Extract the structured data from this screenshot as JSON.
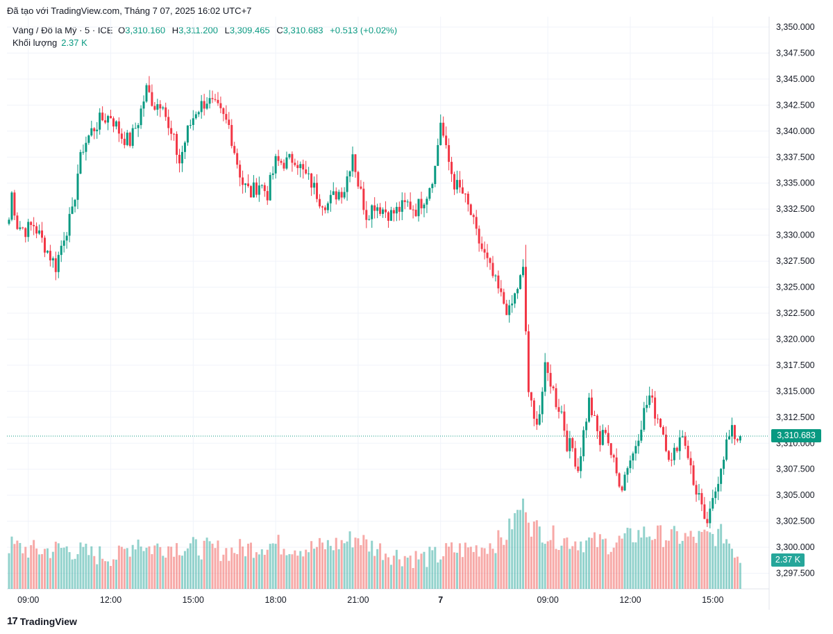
{
  "header": {
    "text": "Đã tạo với TradingView.com, Tháng 7 07, 2025 16:02 UTC+7"
  },
  "legend": {
    "symbol": "Vàng / Đô la Mỹ · 5 · ICE",
    "open_label": "O",
    "open": "3,310.160",
    "high_label": "H",
    "high": "3,311.200",
    "low_label": "L",
    "low": "3,309.465",
    "close_label": "C",
    "close": "3,310.683",
    "change": "+0.513 (+0.02%)",
    "volume_label": "Khối lượng",
    "volume": "2.37 K"
  },
  "last_price_tag": "3,310.683",
  "volume_tag": "2.37 K",
  "brand": {
    "logo": "17",
    "name": "TradingView"
  },
  "colors": {
    "up": "#089981",
    "down": "#f23645",
    "up_vol": "#26a69a",
    "down_vol": "#ef5350",
    "grid": "#f0f3fa",
    "text": "#131722"
  },
  "chart_data": {
    "type": "candlestick",
    "y_range": [
      3296.0,
      3351.0
    ],
    "y_ticks": [
      "3,350.000",
      "3,347.500",
      "3,345.000",
      "3,342.500",
      "3,340.000",
      "3,337.500",
      "3,335.000",
      "3,332.500",
      "3,330.000",
      "3,327.500",
      "3,325.000",
      "3,322.500",
      "3,320.000",
      "3,317.500",
      "3,315.000",
      "3,312.500",
      "3,310.000",
      "3,307.500",
      "3,305.000",
      "3,302.500",
      "3,300.000",
      "3,297.500"
    ],
    "y_tick_values": [
      3350,
      3347.5,
      3345,
      3342.5,
      3340,
      3337.5,
      3335,
      3332.5,
      3330,
      3327.5,
      3325,
      3322.5,
      3320,
      3317.5,
      3315,
      3312.5,
      3310,
      3307.5,
      3305,
      3302.5,
      3300,
      3297.5
    ],
    "x_ticks": [
      {
        "label": "09:00",
        "index": 7
      },
      {
        "label": "12:00",
        "index": 37
      },
      {
        "label": "15:00",
        "index": 67
      },
      {
        "label": "18:00",
        "index": 97
      },
      {
        "label": "21:00",
        "index": 127
      },
      {
        "label": "7",
        "index": 157
      },
      {
        "label": "09:00",
        "index": 196
      },
      {
        "label": "12:00",
        "index": 226
      },
      {
        "label": "15:00",
        "index": 256
      }
    ],
    "last_price": 3310.683,
    "anchors": [
      [
        0,
        3331.5
      ],
      [
        1,
        3334
      ],
      [
        3,
        3331
      ],
      [
        6,
        3330.5
      ],
      [
        9,
        3331
      ],
      [
        13,
        3329
      ],
      [
        17,
        3327
      ],
      [
        20,
        3330
      ],
      [
        23,
        3332
      ],
      [
        25,
        3336
      ],
      [
        27,
        3338.5
      ],
      [
        30,
        3340
      ],
      [
        33,
        3341
      ],
      [
        37,
        3341.5
      ],
      [
        41,
        3339.5
      ],
      [
        44,
        3339
      ],
      [
        47,
        3341
      ],
      [
        50,
        3344
      ],
      [
        53,
        3342.5
      ],
      [
        56,
        3343
      ],
      [
        58,
        3340
      ],
      [
        60,
        3339
      ],
      [
        62,
        3337
      ],
      [
        65,
        3340
      ],
      [
        68,
        3342
      ],
      [
        72,
        3343
      ],
      [
        76,
        3342
      ],
      [
        80,
        3340.5
      ],
      [
        83,
        3337
      ],
      [
        85,
        3335
      ],
      [
        88,
        3334
      ],
      [
        91,
        3335
      ],
      [
        94,
        3334
      ],
      [
        97,
        3337
      ],
      [
        101,
        3337
      ],
      [
        104,
        3337.5
      ],
      [
        107,
        3336
      ],
      [
        110,
        3335
      ],
      [
        113,
        3333.5
      ],
      [
        116,
        3333
      ],
      [
        119,
        3334
      ],
      [
        122,
        3334.5
      ],
      [
        125,
        3338
      ],
      [
        127,
        3335
      ],
      [
        130,
        3332
      ],
      [
        133,
        3333
      ],
      [
        136,
        3332.5
      ],
      [
        139,
        3332
      ],
      [
        142,
        3332.5
      ],
      [
        145,
        3333
      ],
      [
        148,
        3332.5
      ],
      [
        152,
        3334
      ],
      [
        155,
        3336.5
      ],
      [
        157,
        3341
      ],
      [
        159,
        3338
      ],
      [
        162,
        3335
      ],
      [
        165,
        3334
      ],
      [
        168,
        3332
      ],
      [
        170,
        3330
      ],
      [
        173,
        3328
      ],
      [
        176,
        3326
      ],
      [
        179,
        3324
      ],
      [
        182,
        3322.5
      ],
      [
        185,
        3325
      ],
      [
        187,
        3326.5
      ],
      [
        189,
        3315
      ],
      [
        191,
        3312
      ],
      [
        193,
        3313
      ],
      [
        195,
        3317
      ],
      [
        197,
        3316
      ],
      [
        199,
        3314
      ],
      [
        201,
        3313
      ],
      [
        203,
        3310
      ],
      [
        205,
        3309.5
      ],
      [
        207,
        3307.5
      ],
      [
        209,
        3311
      ],
      [
        211,
        3314
      ],
      [
        213,
        3312
      ],
      [
        215,
        3310
      ],
      [
        217,
        3311.5
      ],
      [
        219,
        3309
      ],
      [
        221,
        3307
      ],
      [
        223,
        3306
      ],
      [
        225,
        3308
      ],
      [
        227,
        3309
      ],
      [
        229,
        3311
      ],
      [
        231,
        3313
      ],
      [
        233,
        3314.5
      ],
      [
        235,
        3313
      ],
      [
        237,
        3312
      ],
      [
        239,
        3310
      ],
      [
        241,
        3308
      ],
      [
        243,
        3310
      ],
      [
        245,
        3311
      ],
      [
        247,
        3309
      ],
      [
        249,
        3306
      ],
      [
        251,
        3305
      ],
      [
        253,
        3302
      ],
      [
        255,
        3303
      ],
      [
        257,
        3305.5
      ],
      [
        259,
        3308
      ],
      [
        261,
        3310
      ],
      [
        263,
        3311
      ],
      [
        265,
        3310.5
      ],
      [
        266,
        3310.683
      ]
    ],
    "volume_anchors": [
      [
        0,
        0.48
      ],
      [
        10,
        0.42
      ],
      [
        20,
        0.45
      ],
      [
        30,
        0.38
      ],
      [
        40,
        0.36
      ],
      [
        47,
        0.55
      ],
      [
        50,
        0.45
      ],
      [
        60,
        0.48
      ],
      [
        70,
        0.45
      ],
      [
        80,
        0.42
      ],
      [
        90,
        0.47
      ],
      [
        95,
        0.5
      ],
      [
        100,
        0.48
      ],
      [
        110,
        0.45
      ],
      [
        120,
        0.5
      ],
      [
        127,
        0.58
      ],
      [
        130,
        0.5
      ],
      [
        140,
        0.38
      ],
      [
        150,
        0.34
      ],
      [
        156,
        0.36
      ],
      [
        160,
        0.42
      ],
      [
        170,
        0.45
      ],
      [
        180,
        0.55
      ],
      [
        186,
        0.9
      ],
      [
        188,
        0.95
      ],
      [
        190,
        0.7
      ],
      [
        195,
        0.62
      ],
      [
        200,
        0.55
      ],
      [
        210,
        0.52
      ],
      [
        220,
        0.5
      ],
      [
        230,
        0.62
      ],
      [
        240,
        0.58
      ],
      [
        250,
        0.56
      ],
      [
        255,
        0.58
      ],
      [
        260,
        0.6
      ],
      [
        266,
        0.35
      ]
    ]
  }
}
